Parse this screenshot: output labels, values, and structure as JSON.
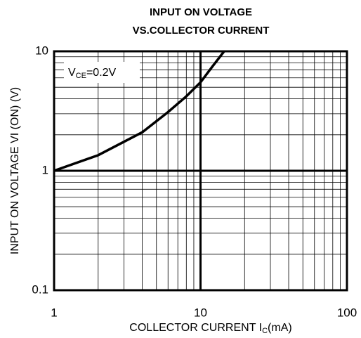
{
  "chart_data": {
    "type": "line",
    "title": [
      "INPUT ON VOLTAGE",
      "VS.COLLECTOR CURRENT"
    ],
    "xlabel": [
      "COLLECTOR CURRENT I",
      "C",
      "(mA)"
    ],
    "ylabel": "INPUT ON VOLTAGE   VI (ON)   (V)",
    "annotation": [
      "V",
      "CE",
      "=0.2V"
    ],
    "xscale": "log",
    "yscale": "log",
    "grid": true,
    "xlim": [
      1,
      100
    ],
    "ylim": [
      0.1,
      10
    ],
    "xticks": [
      1,
      10,
      100
    ],
    "yticks": [
      0.1,
      1,
      10
    ],
    "series": [
      {
        "color": "#000000",
        "x": [
          1,
          2,
          4,
          6,
          8,
          10,
          12,
          14.5
        ],
        "values": [
          1,
          1.35,
          2.1,
          3.1,
          4.2,
          5.5,
          7.4,
          10
        ]
      }
    ]
  }
}
